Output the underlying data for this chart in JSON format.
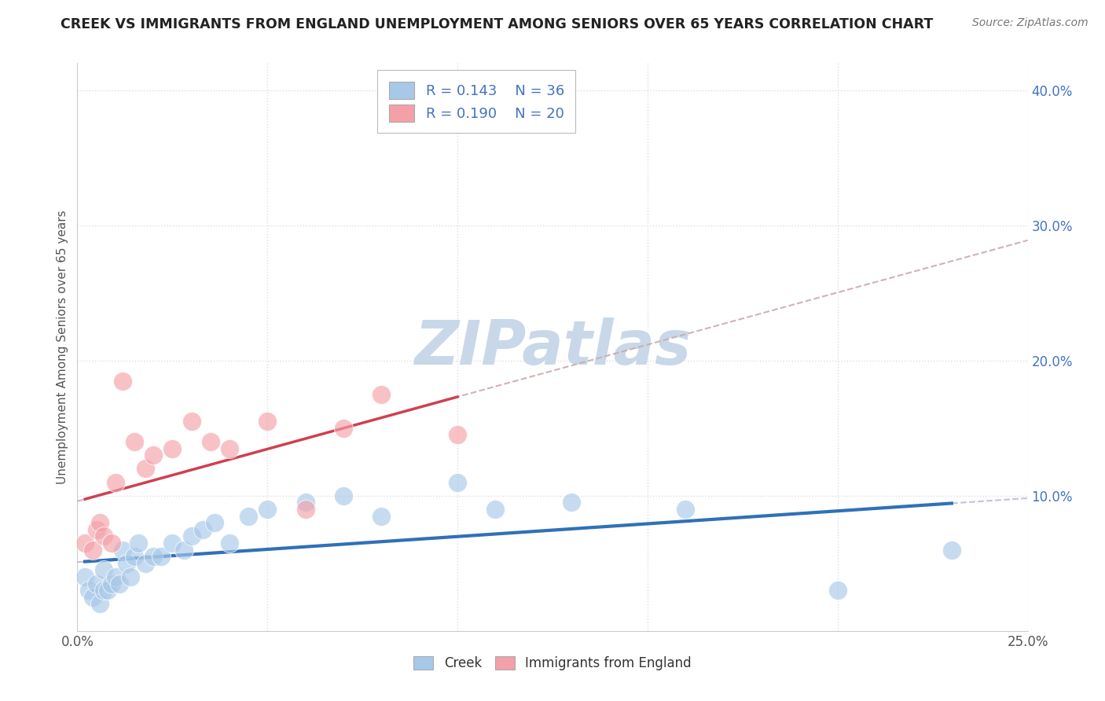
{
  "title": "CREEK VS IMMIGRANTS FROM ENGLAND UNEMPLOYMENT AMONG SENIORS OVER 65 YEARS CORRELATION CHART",
  "source": "Source: ZipAtlas.com",
  "ylabel": "Unemployment Among Seniors over 65 years",
  "creek_R": 0.143,
  "creek_N": 36,
  "eng_R": 0.19,
  "eng_N": 20,
  "creek_color": "#a8c8e8",
  "eng_color": "#f4a0a8",
  "creek_line_color": "#3070b8",
  "eng_line_color": "#d04050",
  "dashed_color": "#ccaaaa",
  "dashed_creek_color": "#aaaacc",
  "xlim": [
    0.0,
    0.25
  ],
  "ylim": [
    0.0,
    0.42
  ],
  "xticks": [
    0.0,
    0.05,
    0.1,
    0.15,
    0.2,
    0.25
  ],
  "yticks": [
    0.1,
    0.2,
    0.3,
    0.4
  ],
  "background_color": "#ffffff",
  "watermark": "ZIPatlas",
  "watermark_color": "#c8d8e8",
  "creek_x": [
    0.002,
    0.003,
    0.004,
    0.005,
    0.006,
    0.007,
    0.007,
    0.008,
    0.009,
    0.01,
    0.011,
    0.012,
    0.013,
    0.014,
    0.015,
    0.016,
    0.018,
    0.02,
    0.022,
    0.025,
    0.028,
    0.03,
    0.033,
    0.036,
    0.04,
    0.045,
    0.05,
    0.06,
    0.07,
    0.08,
    0.1,
    0.11,
    0.13,
    0.16,
    0.2,
    0.23
  ],
  "creek_y": [
    0.04,
    0.03,
    0.025,
    0.035,
    0.02,
    0.03,
    0.045,
    0.03,
    0.035,
    0.04,
    0.035,
    0.06,
    0.05,
    0.04,
    0.055,
    0.065,
    0.05,
    0.055,
    0.055,
    0.065,
    0.06,
    0.07,
    0.075,
    0.08,
    0.065,
    0.085,
    0.09,
    0.095,
    0.1,
    0.085,
    0.11,
    0.09,
    0.095,
    0.09,
    0.03,
    0.06
  ],
  "eng_x": [
    0.002,
    0.004,
    0.005,
    0.006,
    0.007,
    0.009,
    0.01,
    0.012,
    0.015,
    0.018,
    0.02,
    0.025,
    0.03,
    0.035,
    0.04,
    0.05,
    0.06,
    0.07,
    0.08,
    0.1
  ],
  "eng_y": [
    0.065,
    0.06,
    0.075,
    0.08,
    0.07,
    0.065,
    0.11,
    0.185,
    0.14,
    0.12,
    0.13,
    0.135,
    0.155,
    0.14,
    0.135,
    0.155,
    0.09,
    0.15,
    0.175,
    0.145
  ]
}
